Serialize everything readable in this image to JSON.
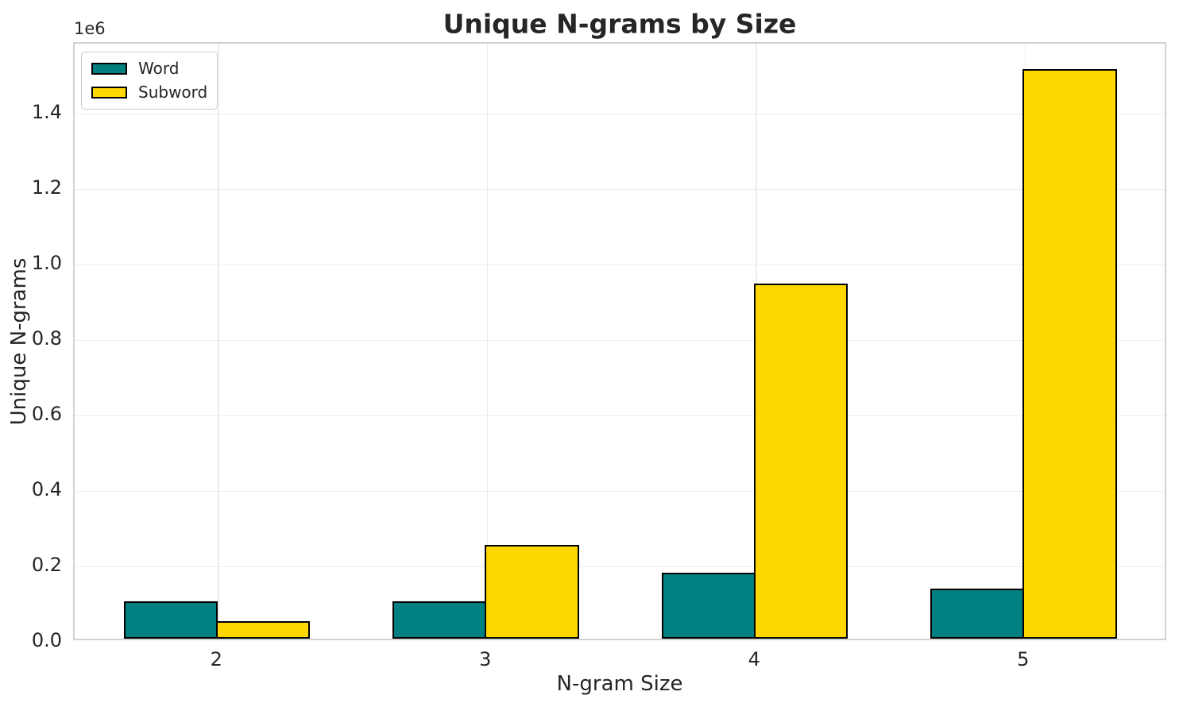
{
  "chart_data": {
    "type": "bar",
    "title": "Unique N-grams by Size",
    "xlabel": "N-gram Size",
    "ylabel": "Unique N-grams",
    "y_offset_text": "1e6",
    "categories": [
      "2",
      "3",
      "4",
      "5"
    ],
    "series": [
      {
        "name": "Word",
        "color": "#008080",
        "values": [
          100000,
          100000,
          175000,
          132000
        ]
      },
      {
        "name": "Subword",
        "color": "#FFD700",
        "values": [
          46000,
          248000,
          940000,
          1510000
        ]
      }
    ],
    "ylim": [
      0,
      1585000
    ],
    "yticks": [
      0,
      200000,
      400000,
      600000,
      800000,
      1000000,
      1200000,
      1400000
    ],
    "ytick_labels": [
      "0.0",
      "0.2",
      "0.4",
      "0.6",
      "0.8",
      "1.0",
      "1.2",
      "1.4"
    ],
    "grid": true,
    "legend_position": "upper left",
    "bar_width_frac": 0.35,
    "bar_edge_color": "#000000",
    "colors": {
      "text": "#262626",
      "grid": "#ededed",
      "spine": "#d2d2d2",
      "background": "#ffffff"
    }
  }
}
